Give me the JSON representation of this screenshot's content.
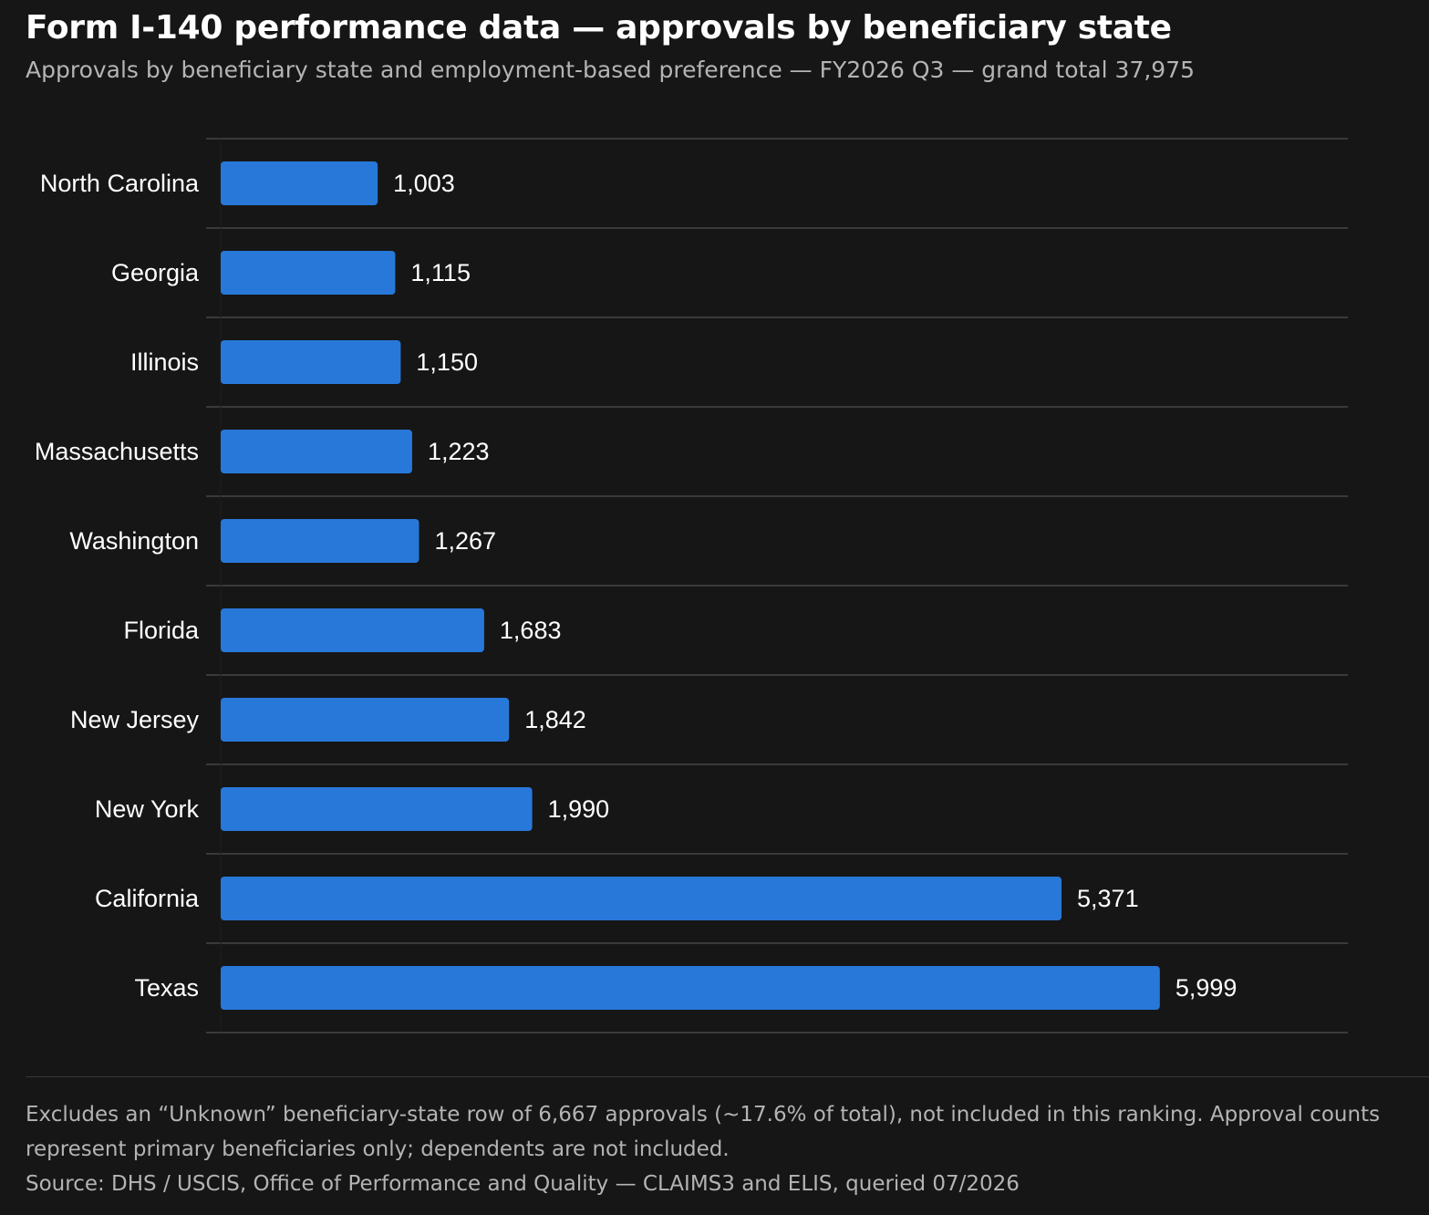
{
  "header": {
    "title": "Form I-140 performance data — approvals by beneficiary state",
    "subtitle": "Approvals by beneficiary state and employment-based preference — FY2026 Q3 — grand total 37,975"
  },
  "footer": {
    "note": "Excludes an “Unknown” beneficiary-state row of 6,667 approvals (~17.6% of total), not included in this ranking. Approval counts represent primary beneficiaries only; dependents are not included.",
    "source": "Source: DHS / USCIS, Office of Performance and Quality — CLAIMS3 and ELIS, queried 07/2026"
  },
  "colors": {
    "background": "#161616",
    "bar": "#2878d9",
    "gridline": "#3a3a3a",
    "text": "#ffffff",
    "muted_text": "#b4b4b4"
  },
  "chart_data": {
    "type": "bar",
    "orientation": "horizontal",
    "categories": [
      "North Carolina",
      "Georgia",
      "Illinois",
      "Massachusetts",
      "Washington",
      "Florida",
      "New Jersey",
      "New York",
      "California",
      "Texas"
    ],
    "values": [
      1003,
      1115,
      1150,
      1223,
      1267,
      1683,
      1842,
      1990,
      5371,
      5999
    ],
    "value_labels": [
      "1,003",
      "1,115",
      "1,150",
      "1,223",
      "1,267",
      "1,683",
      "1,842",
      "1,990",
      "5,371",
      "5,999"
    ],
    "xlim": [
      0,
      7200
    ],
    "grid": true,
    "legend": "none"
  }
}
